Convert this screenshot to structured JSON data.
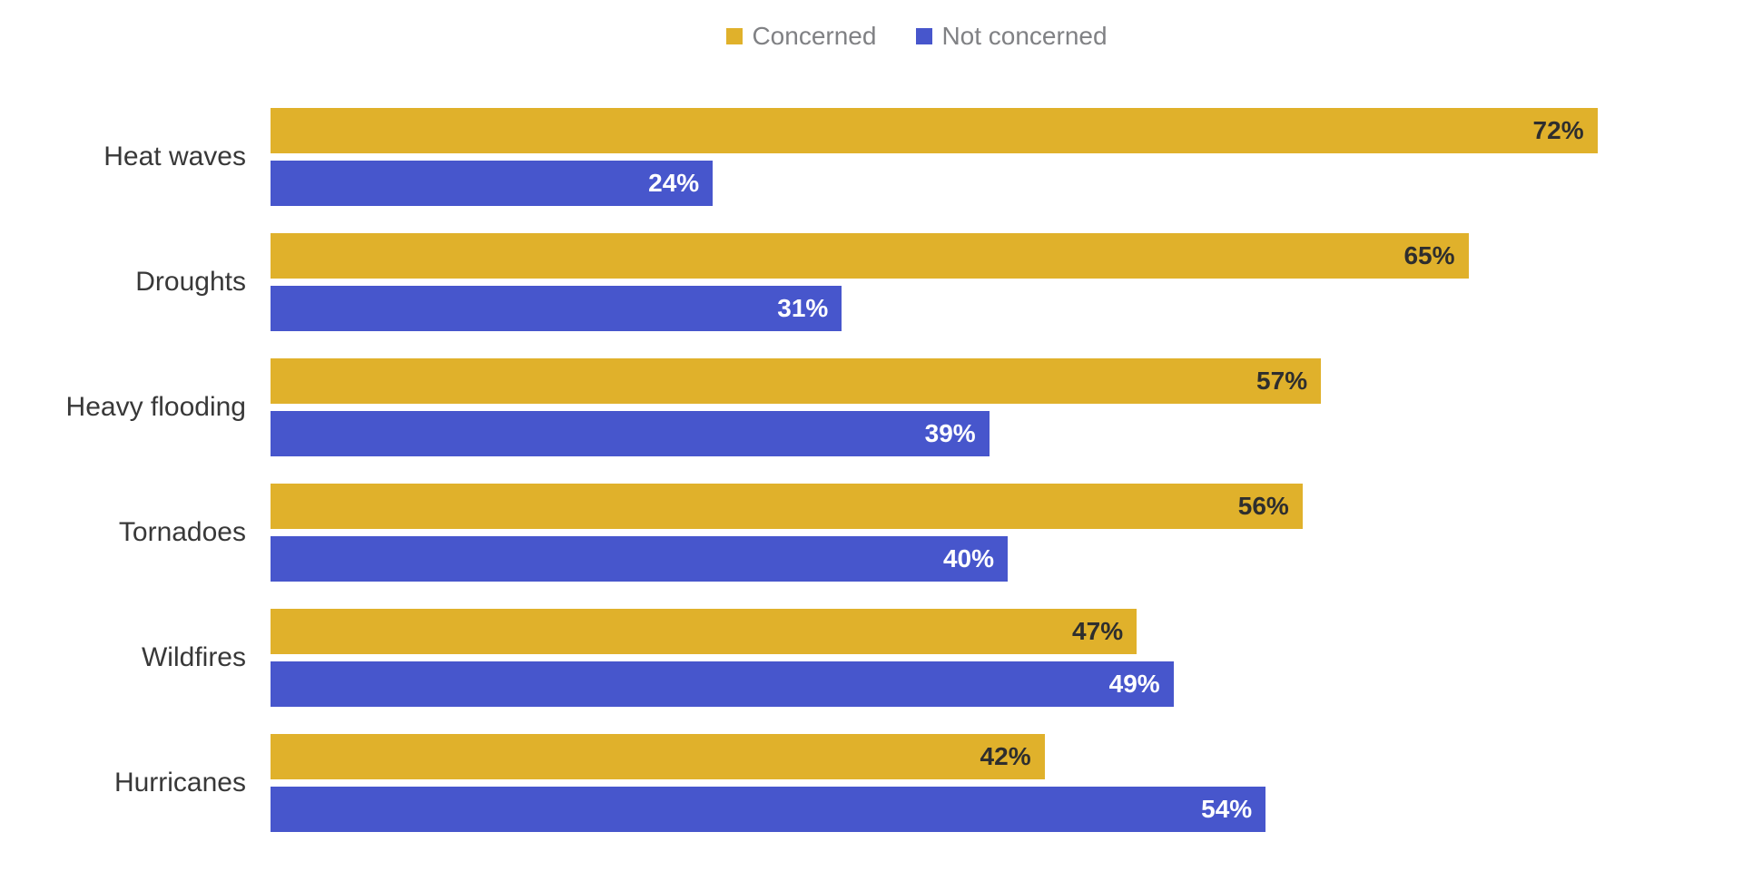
{
  "legend": {
    "position": "top-center",
    "items": [
      {
        "label": "Concerned",
        "color": "#E0B12B"
      },
      {
        "label": "Not concerned",
        "color": "#4756CC"
      }
    ]
  },
  "chart_data": {
    "type": "bar",
    "orientation": "horizontal",
    "title": "",
    "xlabel": "",
    "ylabel": "",
    "grid": false,
    "axes_visible": false,
    "value_suffix": "%",
    "value_labels": "inside-end",
    "xlim": [
      0,
      78.5
    ],
    "categories": [
      "Heat waves",
      "Droughts",
      "Heavy flooding",
      "Tornadoes",
      "Wildfires",
      "Hurricanes"
    ],
    "series": [
      {
        "name": "Concerned",
        "color": "#E0B12B",
        "label_color": "#2E2E2E",
        "values": [
          72,
          65,
          57,
          56,
          47,
          42
        ]
      },
      {
        "name": "Not concerned",
        "color": "#4756CC",
        "label_color": "#FFFFFF",
        "values": [
          24,
          31,
          39,
          40,
          49,
          54
        ]
      }
    ]
  },
  "colors": {
    "background": "#FFFFFF",
    "category_label": "#383838",
    "legend_text": "#808184"
  }
}
